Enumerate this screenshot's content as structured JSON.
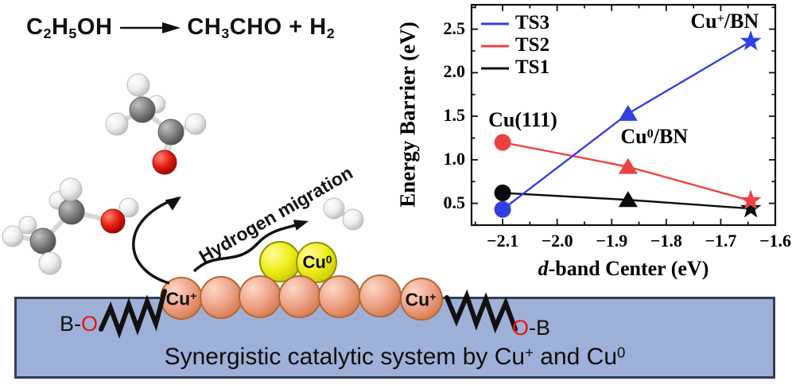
{
  "colors": {
    "ts3_blue": "#3140e2",
    "ts2_red": "#ee4143",
    "ts1_black": "#0b0b0b",
    "banner_bg": "#9fb0d8",
    "banner_border": "#333f58",
    "cu_plus_sphere": "#efa58a",
    "cu_plus_border": "#b26a33",
    "cu_zero_sphere": "#f0ef1e",
    "cu_zero_border": "#8f9004",
    "oxygen_red": "#e81515",
    "carbon_gray": "#868686",
    "hydrogen_white": "#ededed"
  },
  "scene": {
    "equation": {
      "parts": [
        {
          "t": "C"
        },
        {
          "t": "2",
          "sub": 1
        },
        {
          "t": "H"
        },
        {
          "t": "5",
          "sub": 1
        },
        {
          "t": "OH"
        },
        {
          "arrow": 1
        },
        {
          "t": "CH"
        },
        {
          "t": "3",
          "sub": 1
        },
        {
          "t": "CHO + H"
        },
        {
          "t": "2",
          "sub": 1
        }
      ]
    },
    "hydrogen_migration": "Hydrogen migration",
    "b_o_label": [
      {
        "t": "B-"
      },
      {
        "t": "O",
        "red": 1
      }
    ],
    "o_b_label": [
      {
        "t": "O",
        "red": 1
      },
      {
        "t": "-B"
      }
    ],
    "cu_plus_left": [
      {
        "t": "Cu"
      },
      {
        "t": "+",
        "sup": 1
      }
    ],
    "cu_plus_right": [
      {
        "t": "Cu"
      },
      {
        "t": "+",
        "sup": 1
      }
    ],
    "cu_zero": [
      {
        "t": "Cu"
      },
      {
        "t": "0",
        "sup": 1
      }
    ],
    "banner": {
      "parts": [
        {
          "t": "Synergistic catalytic system by Cu"
        },
        {
          "t": "+",
          "sup": 1
        },
        {
          "t": " and Cu"
        },
        {
          "t": "0",
          "sup": 1
        }
      ]
    },
    "molecules": [
      "ethanol",
      "acetaldehyde",
      "hydrogen"
    ]
  },
  "chart_data": {
    "type": "line",
    "xlabel": "d-band Center (eV)",
    "xlabel_parts": [
      {
        "t": "d",
        "italic": 1
      },
      {
        "t": "-band Center (eV)"
      }
    ],
    "ylabel": "Energy Barrier (eV)",
    "x": [
      -2.1,
      -1.87,
      -1.645
    ],
    "surfaces": [
      "Cu(111)",
      "Cu0/BN",
      "Cu+/BN"
    ],
    "point_markers": [
      "circle",
      "triangle",
      "star"
    ],
    "series": [
      {
        "name": "TS1",
        "color_key": "ts1_black",
        "values": [
          0.62,
          0.54,
          0.44
        ]
      },
      {
        "name": "TS2",
        "color_key": "ts2_red",
        "values": [
          1.2,
          0.92,
          0.53
        ]
      },
      {
        "name": "TS3",
        "color_key": "ts3_blue",
        "values": [
          0.43,
          1.53,
          2.36
        ]
      }
    ],
    "legend": [
      "TS3",
      "TS2",
      "TS1"
    ],
    "legend_position": "top-left",
    "grid": false,
    "xlim": [
      -2.157,
      -1.6
    ],
    "ylim": [
      0.25,
      2.78
    ],
    "xtick_values": [
      -2.1,
      -2.0,
      -1.9,
      -1.8,
      -1.7,
      -1.6
    ],
    "xtick_labels": [
      "−2.1",
      "−2.0",
      "−1.9",
      "−1.8",
      "−1.7",
      "−1.6"
    ],
    "ytick_values": [
      0.5,
      1.0,
      1.5,
      2.0,
      2.5
    ],
    "ytick_labels": [
      "0.5",
      "1.0",
      "1.5",
      "2.0",
      "2.5"
    ],
    "annotations": [
      {
        "parts": [
          {
            "t": "Cu(111)"
          }
        ],
        "x": -2.063,
        "y": 1.46
      },
      {
        "parts": [
          {
            "t": "Cu"
          },
          {
            "t": "0",
            "sup": 1
          },
          {
            "t": "/BN"
          }
        ],
        "x": -1.822,
        "y": 1.26
      },
      {
        "parts": [
          {
            "t": "Cu"
          },
          {
            "t": "+",
            "sup": 1
          },
          {
            "t": "/BN"
          }
        ],
        "x": -1.693,
        "y": 2.59
      }
    ]
  }
}
